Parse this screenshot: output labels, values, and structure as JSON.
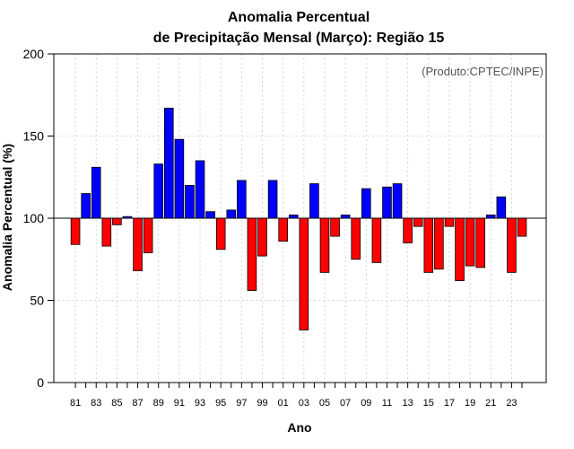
{
  "chart_data": {
    "type": "bar",
    "title_line1": "Anomalia Percentual",
    "title_line2": "de Precipitação Mensal (Março): Região 15",
    "xlabel": "Ano",
    "ylabel": "Anomalia Percentual (%)",
    "credit": "(Produto:CPTEC/INPE)",
    "ylim": [
      0,
      200
    ],
    "yticks": [
      0,
      50,
      100,
      150,
      200
    ],
    "baseline": 100,
    "grid": true,
    "colors": {
      "above": "#0000ff",
      "below": "#ff0000",
      "grid": "#cccccc",
      "axis": "#000000"
    },
    "xtick_labels": [
      "81",
      "83",
      "85",
      "87",
      "89",
      "91",
      "93",
      "95",
      "97",
      "99",
      "01",
      "03",
      "05",
      "07",
      "09",
      "11",
      "13",
      "15",
      "17",
      "19",
      "21",
      "23"
    ],
    "years": [
      "1981",
      "1982",
      "1983",
      "1984",
      "1985",
      "1986",
      "1987",
      "1988",
      "1989",
      "1990",
      "1991",
      "1992",
      "1993",
      "1994",
      "1995",
      "1996",
      "1997",
      "1998",
      "1999",
      "2000",
      "2001",
      "2002",
      "2003",
      "2004",
      "2005",
      "2006",
      "2007",
      "2008",
      "2009",
      "2010",
      "2011",
      "2012",
      "2013",
      "2014",
      "2015",
      "2016",
      "2017",
      "2018",
      "2019",
      "2020",
      "2021",
      "2022",
      "2023",
      "2024"
    ],
    "values": [
      84,
      115,
      131,
      83,
      96,
      101,
      68,
      79,
      133,
      167,
      148,
      120,
      135,
      104,
      81,
      105,
      123,
      56,
      77,
      123,
      86,
      102,
      32,
      121,
      67,
      89,
      102,
      75,
      118,
      73,
      119,
      121,
      85,
      95,
      67,
      69,
      95,
      62,
      71,
      70,
      102,
      113,
      67,
      89
    ]
  }
}
